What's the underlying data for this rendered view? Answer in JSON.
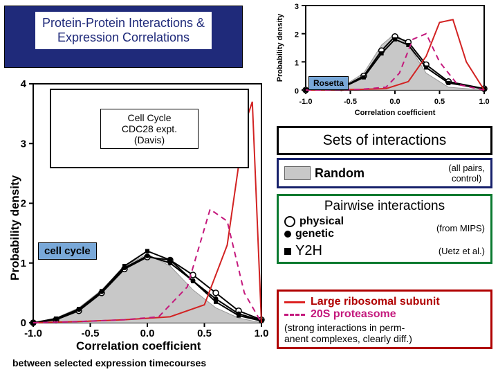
{
  "title": {
    "line1": "Protein-Protein Interactions &",
    "line2": "Expression Correlations",
    "text_color": "#1f2a7a",
    "bg_color": "#1f2a7a",
    "fontsize": 18
  },
  "main_chart": {
    "type": "line",
    "badge": "cell cycle",
    "inset_line1": "Cell Cycle",
    "inset_line2": "CDC28 expt. (Davis)",
    "xlabel": "Correlation coefficient",
    "ylabel": "Probability density",
    "label_fontsize": 17,
    "xlim": [
      -1.0,
      1.0
    ],
    "ylim": [
      0,
      4
    ],
    "xticks": [
      -1.0,
      -0.5,
      0.0,
      0.5,
      1.0
    ],
    "yticks": [
      0,
      1,
      2,
      3,
      4
    ],
    "background_color": "#ffffff",
    "grid_color": "#000000",
    "fill_color": "#d6d6d6",
    "series": {
      "random": {
        "x": [
          -1.0,
          -0.8,
          -0.6,
          -0.4,
          -0.2,
          0.0,
          0.2,
          0.4,
          0.6,
          0.8,
          1.0
        ],
        "y": [
          0.0,
          0.08,
          0.25,
          0.55,
          0.95,
          1.15,
          0.95,
          0.55,
          0.25,
          0.08,
          0.0
        ],
        "color": "#c8c8c8",
        "type": "area"
      },
      "physical": {
        "x": [
          -1.0,
          -0.8,
          -0.6,
          -0.4,
          -0.2,
          0.0,
          0.2,
          0.4,
          0.6,
          0.8,
          1.0
        ],
        "y": [
          0.0,
          0.05,
          0.2,
          0.5,
          0.9,
          1.1,
          1.05,
          0.8,
          0.5,
          0.2,
          0.05
        ],
        "color": "#000000",
        "marker": "circle-open",
        "lw": 2
      },
      "genetic": {
        "x": [
          -1.0,
          -0.8,
          -0.6,
          -0.4,
          -0.2,
          0.0,
          0.2,
          0.4,
          0.6,
          0.8,
          1.0
        ],
        "y": [
          0.0,
          0.06,
          0.22,
          0.52,
          0.92,
          1.12,
          1.0,
          0.7,
          0.4,
          0.15,
          0.04
        ],
        "color": "#000000",
        "marker": "circle-filled",
        "lw": 2
      },
      "y2h": {
        "x": [
          -1.0,
          -0.8,
          -0.6,
          -0.4,
          -0.2,
          0.0,
          0.2,
          0.4,
          0.6,
          0.8,
          1.0
        ],
        "y": [
          0.0,
          0.07,
          0.23,
          0.53,
          0.95,
          1.2,
          1.05,
          0.7,
          0.35,
          0.12,
          0.03
        ],
        "color": "#000000",
        "marker": "square",
        "lw": 2
      },
      "ribosome": {
        "x": [
          -1.0,
          -0.6,
          -0.2,
          0.2,
          0.5,
          0.7,
          0.85,
          0.92,
          1.0
        ],
        "y": [
          0.0,
          0.02,
          0.05,
          0.1,
          0.3,
          1.3,
          3.3,
          3.7,
          0.0
        ],
        "color": "#d22222",
        "lw": 2
      },
      "proteasome": {
        "x": [
          -1.0,
          -0.6,
          -0.2,
          0.1,
          0.35,
          0.55,
          0.7,
          0.85,
          1.0
        ],
        "y": [
          0.0,
          0.02,
          0.05,
          0.1,
          0.6,
          1.9,
          1.7,
          0.5,
          0.0
        ],
        "color": "#c4187c",
        "dash": true,
        "lw": 2
      }
    }
  },
  "small_chart": {
    "type": "line",
    "badge": "Rosetta",
    "xlabel": "Correlation coefficient",
    "ylabel": "Probability density",
    "xlim": [
      -1.0,
      1.0
    ],
    "ylim": [
      0,
      3
    ],
    "xticks": [
      -1.0,
      -0.5,
      0.0,
      0.5,
      1.0
    ],
    "yticks": [
      0,
      1,
      2,
      3
    ],
    "fill_color": "#d6d6d6",
    "series": {
      "random": {
        "x": [
          -1,
          -0.6,
          -0.35,
          -0.15,
          0.0,
          0.15,
          0.35,
          0.6,
          1
        ],
        "y": [
          0,
          0.1,
          0.6,
          1.6,
          2.0,
          1.6,
          0.6,
          0.1,
          0
        ],
        "color": "#c8c8c8",
        "type": "area"
      },
      "physical": {
        "x": [
          -1,
          -0.6,
          -0.35,
          -0.15,
          0.0,
          0.15,
          0.35,
          0.6,
          1
        ],
        "y": [
          0,
          0.08,
          0.5,
          1.4,
          1.9,
          1.7,
          0.9,
          0.3,
          0.05
        ],
        "color": "#000",
        "marker": "circle-open"
      },
      "y2h": {
        "x": [
          -1,
          -0.6,
          -0.35,
          -0.15,
          0.0,
          0.15,
          0.35,
          0.6,
          1
        ],
        "y": [
          0,
          0.07,
          0.45,
          1.3,
          1.8,
          1.6,
          0.8,
          0.25,
          0.04
        ],
        "color": "#000",
        "marker": "square"
      },
      "ribosome": {
        "x": [
          -1,
          -0.4,
          -0.1,
          0.15,
          0.35,
          0.5,
          0.65,
          0.8,
          1
        ],
        "y": [
          0,
          0.02,
          0.05,
          0.3,
          1.2,
          2.4,
          2.5,
          1.0,
          0
        ],
        "color": "#d22222"
      },
      "proteasome": {
        "x": [
          -1,
          -0.4,
          -0.1,
          0.05,
          0.2,
          0.35,
          0.5,
          0.7,
          1
        ],
        "y": [
          0,
          0.02,
          0.1,
          0.6,
          1.8,
          2.0,
          1.0,
          0.2,
          0
        ],
        "color": "#c4187c",
        "dash": true
      }
    }
  },
  "legend": {
    "sets_title": "Sets of interactions",
    "random": {
      "label": "Random",
      "note_line1": "(all pairs,",
      "note_line2": "control)",
      "swatch": "#c8c8c8",
      "border": "#17216b"
    },
    "pairwise_title": "Pairwise interactions",
    "physical": "physical",
    "genetic": "genetic",
    "mips_note": "(from MIPS)",
    "y2h": "Y2H",
    "y2h_note": "(Uetz et al.)",
    "green_border": "#0a7a2f",
    "ribosome": "Large ribosomal subunit",
    "proteasome": "20S proteasome",
    "red_note": "(strong interactions in perm-\nanent complexes, clearly diff.)",
    "red_border": "#b00000"
  },
  "footer": {
    "left": "between selected expression timecourses"
  }
}
